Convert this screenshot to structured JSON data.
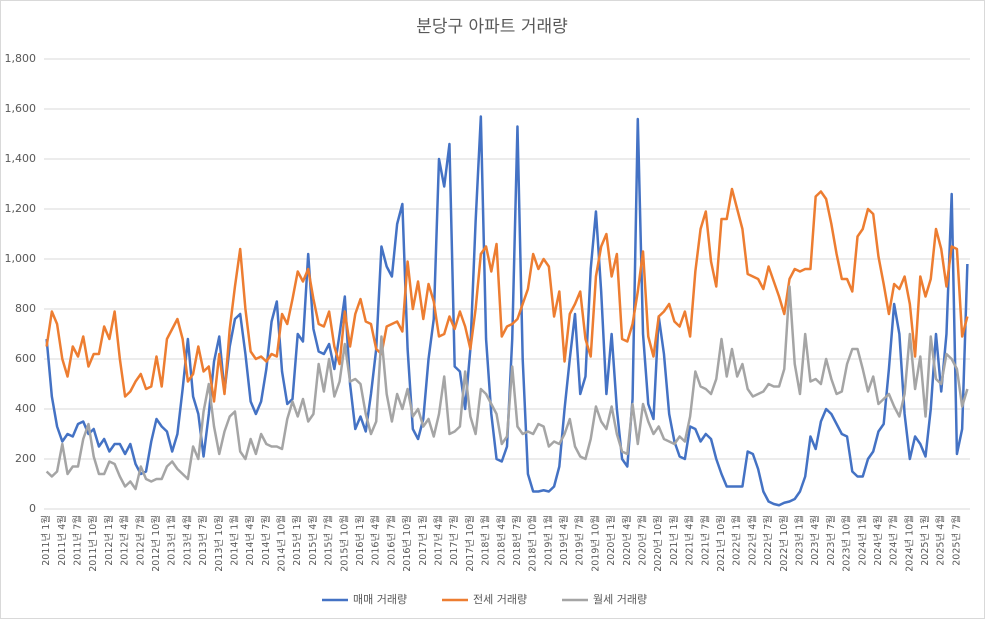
{
  "chart_data": {
    "type": "line",
    "title": "분당구 아파트 거래량",
    "categories": [
      "2011년 1월",
      null,
      null,
      "2011년 4월",
      null,
      null,
      "2011년 7월",
      null,
      null,
      "2011년 10월",
      null,
      null,
      "2012년 1월",
      null,
      null,
      "2012년 4월",
      null,
      null,
      "2012년 7월",
      null,
      null,
      "2012년 10월",
      null,
      null,
      "2013년 1월",
      null,
      null,
      "2013년 4월",
      null,
      null,
      "2013년 7월",
      null,
      null,
      "2013년 10월",
      null,
      null,
      "2014년 1월",
      null,
      null,
      "2014년 4월",
      null,
      null,
      "2014년 7월",
      null,
      null,
      "2014년 10월",
      null,
      null,
      "2015년 1월",
      null,
      null,
      "2015년 4월",
      null,
      null,
      "2015년 7월",
      null,
      null,
      "2015년 10월",
      null,
      null,
      "2016년 1월",
      null,
      null,
      "2016년 4월",
      null,
      null,
      "2016년 7월",
      null,
      null,
      "2016년 10월",
      null,
      null,
      "2017년 1월",
      null,
      null,
      "2017년 4월",
      null,
      null,
      "2017년 7월",
      null,
      null,
      "2017년 10월",
      null,
      null,
      "2018년 1월",
      null,
      null,
      "2018년 4월",
      null,
      null,
      "2018년 7월",
      null,
      null,
      "2018년 10월",
      null,
      null,
      "2019년 1월",
      null,
      null,
      "2019년 4월",
      null,
      null,
      "2019년 7월",
      null,
      null,
      "2019년 10월",
      null,
      null,
      "2020년 1월",
      null,
      null,
      "2020년 4월",
      null,
      null,
      "2020년 7월",
      null,
      null,
      "2020년 10월",
      null,
      null,
      "2021년 1월",
      null,
      null,
      "2021년 4월",
      null,
      null,
      "2021년 7월",
      null,
      null,
      "2021년 10월",
      null,
      null,
      "2022년 1월",
      null,
      null,
      "2022년 4월",
      null,
      null,
      "2022년 7월",
      null,
      null,
      "2022년 10월",
      null,
      null,
      "2023년 1월",
      null,
      null,
      "2023년 4월",
      null,
      null,
      "2023년 7월",
      null,
      null,
      "2023년 10월",
      null,
      null,
      "2024년 1월",
      null,
      null,
      "2024년 4월",
      null,
      null,
      "2024년 7월",
      null,
      null,
      "2024년 10월",
      null,
      null,
      "2025년 1월",
      null,
      null,
      "2025년 4월",
      null,
      null,
      "2025년 7월",
      null,
      null
    ],
    "series": [
      {
        "name": "매매 거래량",
        "color": "#4472c4",
        "values": [
          680,
          450,
          330,
          270,
          300,
          290,
          340,
          350,
          300,
          320,
          250,
          280,
          230,
          260,
          260,
          220,
          260,
          180,
          140,
          150,
          270,
          360,
          330,
          310,
          230,
          300,
          480,
          680,
          450,
          380,
          210,
          380,
          590,
          690,
          470,
          650,
          760,
          780,
          620,
          430,
          380,
          430,
          560,
          750,
          830,
          550,
          420,
          440,
          700,
          670,
          1020,
          720,
          630,
          620,
          660,
          560,
          700,
          850,
          500,
          320,
          370,
          310,
          460,
          640,
          1050,
          970,
          930,
          1140,
          1220,
          640,
          320,
          280,
          360,
          600,
          760,
          1400,
          1290,
          1460,
          570,
          550,
          400,
          640,
          1150,
          1570,
          680,
          380,
          200,
          190,
          250,
          680,
          1530,
          600,
          140,
          70,
          70,
          75,
          70,
          90,
          170,
          400,
          600,
          780,
          460,
          530,
          960,
          1190,
          870,
          460,
          700,
          400,
          200,
          170,
          440,
          1560,
          700,
          420,
          360,
          770,
          620,
          380,
          270,
          210,
          200,
          330,
          320,
          270,
          300,
          280,
          200,
          140,
          90,
          90,
          90,
          90,
          230,
          220,
          160,
          70,
          30,
          20,
          15,
          25,
          30,
          40,
          70,
          130,
          290,
          240,
          350,
          400,
          380,
          340,
          300,
          290,
          150,
          130,
          130,
          200,
          230,
          310,
          340,
          560,
          820,
          700,
          380,
          200,
          290,
          260,
          210,
          400,
          700,
          470,
          700,
          1260,
          220,
          320,
          980
        ]
      },
      {
        "name": "전세 거래량",
        "color": "#ed7d31",
        "values": [
          650,
          790,
          740,
          600,
          530,
          650,
          610,
          690,
          570,
          620,
          620,
          730,
          680,
          790,
          600,
          450,
          470,
          510,
          540,
          480,
          490,
          610,
          490,
          680,
          720,
          760,
          680,
          510,
          540,
          650,
          550,
          570,
          430,
          620,
          460,
          720,
          890,
          1040,
          800,
          630,
          600,
          610,
          590,
          620,
          610,
          780,
          740,
          840,
          950,
          910,
          960,
          840,
          740,
          730,
          790,
          650,
          580,
          790,
          650,
          780,
          840,
          750,
          740,
          640,
          620,
          730,
          740,
          750,
          710,
          990,
          800,
          910,
          760,
          900,
          830,
          690,
          700,
          770,
          720,
          790,
          730,
          640,
          800,
          1020,
          1050,
          950,
          1060,
          690,
          730,
          740,
          760,
          820,
          880,
          1020,
          960,
          1000,
          970,
          770,
          870,
          590,
          780,
          820,
          870,
          680,
          610,
          930,
          1050,
          1100,
          930,
          1020,
          680,
          670,
          740,
          870,
          1030,
          690,
          610,
          770,
          790,
          820,
          750,
          730,
          790,
          690,
          950,
          1120,
          1190,
          990,
          890,
          1160,
          1160,
          1280,
          1200,
          1120,
          940,
          930,
          920,
          880,
          970,
          910,
          850,
          780,
          920,
          960,
          950,
          960,
          960,
          1250,
          1270,
          1240,
          1140,
          1020,
          920,
          920,
          870,
          1090,
          1120,
          1200,
          1180,
          1010,
          900,
          780,
          900,
          880,
          930,
          820,
          610,
          930,
          850,
          920,
          1120,
          1040,
          890,
          1050,
          1040,
          690,
          770
        ]
      },
      {
        "name": "월세 거래량",
        "color": "#a5a5a5",
        "values": [
          150,
          130,
          150,
          260,
          140,
          170,
          170,
          280,
          340,
          210,
          140,
          140,
          190,
          180,
          130,
          90,
          110,
          80,
          170,
          120,
          110,
          120,
          120,
          170,
          190,
          160,
          140,
          120,
          250,
          200,
          390,
          500,
          330,
          220,
          310,
          370,
          390,
          230,
          200,
          280,
          220,
          300,
          260,
          250,
          250,
          240,
          360,
          430,
          370,
          440,
          350,
          380,
          580,
          470,
          600,
          450,
          510,
          660,
          510,
          520,
          500,
          380,
          300,
          350,
          690,
          460,
          350,
          460,
          400,
          480,
          370,
          400,
          330,
          360,
          290,
          380,
          530,
          300,
          310,
          330,
          550,
          370,
          300,
          480,
          460,
          420,
          380,
          260,
          290,
          570,
          330,
          300,
          310,
          300,
          340,
          330,
          250,
          270,
          260,
          300,
          360,
          250,
          210,
          200,
          280,
          410,
          350,
          320,
          410,
          300,
          230,
          220,
          420,
          260,
          420,
          350,
          300,
          330,
          280,
          270,
          260,
          290,
          270,
          370,
          550,
          490,
          480,
          460,
          520,
          680,
          530,
          640,
          530,
          580,
          480,
          450,
          460,
          470,
          500,
          490,
          490,
          560,
          890,
          580,
          460,
          700,
          510,
          520,
          500,
          600,
          520,
          460,
          470,
          580,
          640,
          640,
          560,
          470,
          530,
          420,
          440,
          460,
          410,
          370,
          460,
          700,
          480,
          610,
          370,
          690,
          520,
          500,
          620,
          600,
          560,
          410,
          480
        ]
      }
    ],
    "ylim": [
      0,
      1800
    ],
    "yticks": [
      0,
      200,
      400,
      600,
      800,
      {
        "value": 1000,
        "label": "1,000"
      },
      {
        "value": 1200,
        "label": "1,200"
      },
      {
        "value": 1400,
        "label": "1,400"
      },
      {
        "value": 1600,
        "label": "1,600"
      },
      {
        "value": 1800,
        "label": "1,800"
      }
    ],
    "grid": true,
    "legend": "bottom"
  }
}
